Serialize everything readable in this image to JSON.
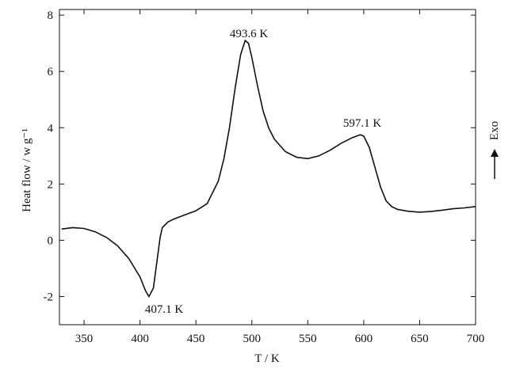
{
  "chart_data": {
    "type": "line",
    "x_label": "T / K",
    "y_label": "Heat flow / w g⁻¹",
    "side_label": "Exo",
    "annotations": [
      "493.6 K",
      "597.1 K",
      "407.1 K"
    ],
    "xlim": [
      328,
      700
    ],
    "xticks": [
      350,
      400,
      450,
      500,
      550,
      600,
      650,
      700
    ],
    "ylim": [
      -3,
      8.2
    ],
    "yticks": [
      -2,
      0,
      2,
      4,
      6,
      8
    ],
    "series": [
      {
        "color": "#111111",
        "x": [
          330,
          340,
          350,
          360,
          370,
          380,
          390,
          400,
          405,
          408,
          412,
          415,
          418,
          420,
          425,
          430,
          440,
          450,
          460,
          470,
          475,
          480,
          485,
          490,
          494,
          497,
          500,
          505,
          510,
          515,
          520,
          530,
          540,
          550,
          560,
          570,
          580,
          590,
          597,
          600,
          605,
          610,
          615,
          620,
          625,
          630,
          640,
          650,
          660,
          670,
          680,
          690,
          700
        ],
        "values": [
          0.4,
          0.45,
          0.42,
          0.3,
          0.1,
          -0.2,
          -0.65,
          -1.3,
          -1.8,
          -2.0,
          -1.7,
          -0.8,
          0.1,
          0.45,
          0.65,
          0.75,
          0.9,
          1.05,
          1.3,
          2.1,
          2.9,
          4.0,
          5.4,
          6.6,
          7.1,
          7.0,
          6.5,
          5.5,
          4.6,
          4.0,
          3.6,
          3.15,
          2.95,
          2.9,
          3.0,
          3.2,
          3.45,
          3.65,
          3.75,
          3.7,
          3.3,
          2.6,
          1.9,
          1.4,
          1.2,
          1.1,
          1.03,
          1.0,
          1.02,
          1.07,
          1.12,
          1.15,
          1.2
        ]
      }
    ]
  }
}
